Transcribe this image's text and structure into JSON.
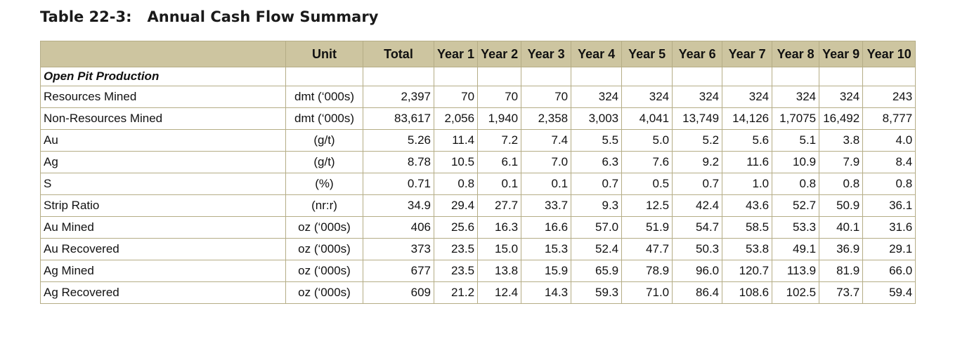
{
  "title": {
    "number": "Table 22-3:",
    "text": "Annual Cash Flow Summary"
  },
  "columns": [
    "",
    "Unit",
    "Total",
    "Year 1",
    "Year 2",
    "Year 3",
    "Year 4",
    "Year 5",
    "Year 6",
    "Year 7",
    "Year 8",
    "Year 9",
    "Year 10"
  ],
  "section": "Open Pit Production",
  "rows": [
    {
      "label": "Resources Mined",
      "unit": "dmt (‘000s)",
      "values": [
        "2,397",
        "70",
        "70",
        "70",
        "324",
        "324",
        "324",
        "324",
        "324",
        "324",
        "243"
      ]
    },
    {
      "label": "Non-Resources Mined",
      "unit": "dmt (‘000s)",
      "values": [
        "83,617",
        "2,056",
        "1,940",
        "2,358",
        "3,003",
        "4,041",
        "13,749",
        "14,126",
        "1,7075",
        "16,492",
        "8,777"
      ]
    },
    {
      "label": "Au",
      "unit": "(g/t)",
      "values": [
        "5.26",
        "11.4",
        "7.2",
        "7.4",
        "5.5",
        "5.0",
        "5.2",
        "5.6",
        "5.1",
        "3.8",
        "4.0"
      ]
    },
    {
      "label": "Ag",
      "unit": "(g/t)",
      "values": [
        "8.78",
        "10.5",
        "6.1",
        "7.0",
        "6.3",
        "7.6",
        "9.2",
        "11.6",
        "10.9",
        "7.9",
        "8.4"
      ]
    },
    {
      "label": "S",
      "unit": "(%)",
      "values": [
        "0.71",
        "0.8",
        "0.1",
        "0.1",
        "0.7",
        "0.5",
        "0.7",
        "1.0",
        "0.8",
        "0.8",
        "0.8"
      ]
    },
    {
      "label": "Strip Ratio",
      "unit": "(nr:r)",
      "values": [
        "34.9",
        "29.4",
        "27.7",
        "33.7",
        "9.3",
        "12.5",
        "42.4",
        "43.6",
        "52.7",
        "50.9",
        "36.1"
      ]
    },
    {
      "label": "Au Mined",
      "unit": "oz (‘000s)",
      "values": [
        "406",
        "25.6",
        "16.3",
        "16.6",
        "57.0",
        "51.9",
        "54.7",
        "58.5",
        "53.3",
        "40.1",
        "31.6"
      ]
    },
    {
      "label": "Au Recovered",
      "unit": "oz (‘000s)",
      "values": [
        "373",
        "23.5",
        "15.0",
        "15.3",
        "52.4",
        "47.7",
        "50.3",
        "53.8",
        "49.1",
        "36.9",
        "29.1"
      ]
    },
    {
      "label": "Ag Mined",
      "unit": "oz (‘000s)",
      "values": [
        "677",
        "23.5",
        "13.8",
        "15.9",
        "65.9",
        "78.9",
        "96.0",
        "120.7",
        "113.9",
        "81.9",
        "66.0"
      ]
    },
    {
      "label": "Ag Recovered",
      "unit": "oz (‘000s)",
      "values": [
        "609",
        "21.2",
        "12.4",
        "14.3",
        "59.3",
        "71.0",
        "86.4",
        "108.6",
        "102.5",
        "73.7",
        "59.4"
      ]
    }
  ],
  "colors": {
    "header_bg": "#cdc5a0",
    "border": "#b5ad86"
  }
}
